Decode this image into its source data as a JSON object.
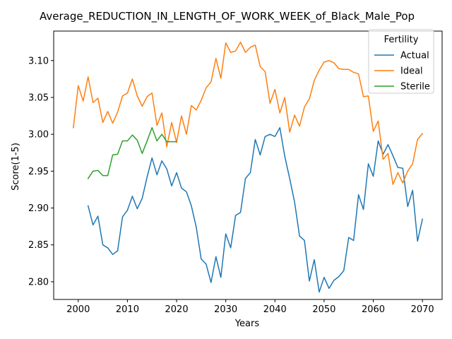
{
  "chart_data": {
    "type": "line",
    "title": "Average_REDUCTION_IN_LENGTH_OF_WORK_WEEK_of_Black_Male_Pop",
    "xlabel": "Years",
    "ylabel": "Score(1-5)",
    "xlim": [
      1995,
      2074
    ],
    "ylim": [
      2.776,
      3.14
    ],
    "x_ticks": [
      2000,
      2010,
      2020,
      2030,
      2040,
      2050,
      2060,
      2070
    ],
    "x_tick_labels": [
      "2000",
      "2010",
      "2020",
      "2030",
      "2040",
      "2050",
      "2060",
      "2070"
    ],
    "y_ticks": [
      2.8,
      2.85,
      2.9,
      2.95,
      3.0,
      3.05,
      3.1
    ],
    "y_tick_labels": [
      "2.80",
      "2.85",
      "2.90",
      "2.95",
      "3.00",
      "3.05",
      "3.10"
    ],
    "grid": false,
    "legend": {
      "title": "Fertility",
      "position": "upper right"
    },
    "series": [
      {
        "name": "Actual",
        "color": "#1f77b4",
        "x": [
          2002,
          2003,
          2004,
          2005,
          2006,
          2007,
          2008,
          2009,
          2010,
          2011,
          2012,
          2013,
          2014,
          2015,
          2016,
          2017,
          2018,
          2019,
          2020,
          2021,
          2022,
          2023,
          2024,
          2025,
          2026,
          2027,
          2028,
          2029,
          2030,
          2031,
          2032,
          2033,
          2034,
          2035,
          2036,
          2037,
          2038,
          2039,
          2040,
          2041,
          2042,
          2043,
          2044,
          2045,
          2046,
          2047,
          2048,
          2049,
          2050,
          2051,
          2052,
          2053,
          2054,
          2055,
          2056,
          2057,
          2058,
          2059,
          2060,
          2061,
          2062,
          2063,
          2064,
          2065,
          2066,
          2067,
          2068,
          2069,
          2070
        ],
        "y": [
          2.903,
          2.877,
          2.889,
          2.85,
          2.846,
          2.837,
          2.842,
          2.888,
          2.897,
          2.916,
          2.899,
          2.913,
          2.942,
          2.968,
          2.945,
          2.964,
          2.953,
          2.93,
          2.948,
          2.927,
          2.922,
          2.903,
          2.874,
          2.831,
          2.824,
          2.799,
          2.834,
          2.806,
          2.865,
          2.846,
          2.89,
          2.894,
          2.94,
          2.948,
          2.993,
          2.972,
          2.997,
          3.0,
          2.997,
          3.009,
          2.97,
          2.94,
          2.908,
          2.862,
          2.856,
          2.801,
          2.83,
          2.786,
          2.806,
          2.791,
          2.802,
          2.807,
          2.815,
          2.86,
          2.856,
          2.918,
          2.898,
          2.96,
          2.943,
          2.991,
          2.973,
          2.986,
          2.971,
          2.955,
          2.954,
          2.902,
          2.924,
          2.855,
          2.885
        ]
      },
      {
        "name": "Ideal",
        "color": "#ff7f0e",
        "x": [
          1999,
          2000,
          2001,
          2002,
          2003,
          2004,
          2005,
          2006,
          2007,
          2008,
          2009,
          2010,
          2011,
          2012,
          2013,
          2014,
          2015,
          2016,
          2017,
          2018,
          2019,
          2020,
          2021,
          2022,
          2023,
          2024,
          2025,
          2026,
          2027,
          2028,
          2029,
          2030,
          2031,
          2032,
          2033,
          2034,
          2035,
          2036,
          2037,
          2038,
          2039,
          2040,
          2041,
          2042,
          2043,
          2044,
          2045,
          2046,
          2047,
          2048,
          2049,
          2050,
          2051,
          2052,
          2053,
          2054,
          2055,
          2056,
          2057,
          2058,
          2059,
          2060,
          2061,
          2062,
          2063,
          2064,
          2065,
          2066,
          2067,
          2068,
          2069,
          2070
        ],
        "y": [
          3.009,
          3.066,
          3.045,
          3.078,
          3.043,
          3.049,
          3.016,
          3.031,
          3.015,
          3.03,
          3.052,
          3.056,
          3.075,
          3.052,
          3.038,
          3.051,
          3.056,
          3.012,
          3.029,
          2.983,
          3.016,
          2.989,
          3.025,
          3.0,
          3.039,
          3.033,
          3.046,
          3.063,
          3.071,
          3.103,
          3.076,
          3.124,
          3.111,
          3.113,
          3.125,
          3.111,
          3.118,
          3.121,
          3.092,
          3.085,
          3.042,
          3.061,
          3.029,
          3.05,
          3.003,
          3.026,
          3.011,
          3.037,
          3.048,
          3.073,
          3.087,
          3.098,
          3.1,
          3.097,
          3.089,
          3.088,
          3.088,
          3.084,
          3.082,
          3.051,
          3.052,
          3.004,
          3.018,
          2.966,
          2.974,
          2.932,
          2.948,
          2.934,
          2.95,
          2.96,
          2.993,
          3.001
        ]
      },
      {
        "name": "Sterile",
        "color": "#2ca02c",
        "x": [
          2002,
          2003,
          2004,
          2005,
          2006,
          2007,
          2008,
          2009,
          2010,
          2011,
          2012,
          2013,
          2014,
          2015,
          2016,
          2017,
          2018,
          2019,
          2020
        ],
        "y": [
          2.94,
          2.95,
          2.951,
          2.944,
          2.944,
          2.972,
          2.973,
          2.991,
          2.991,
          2.999,
          2.992,
          2.974,
          2.991,
          3.009,
          2.991,
          3.0,
          2.99,
          2.99,
          2.99
        ]
      }
    ]
  }
}
